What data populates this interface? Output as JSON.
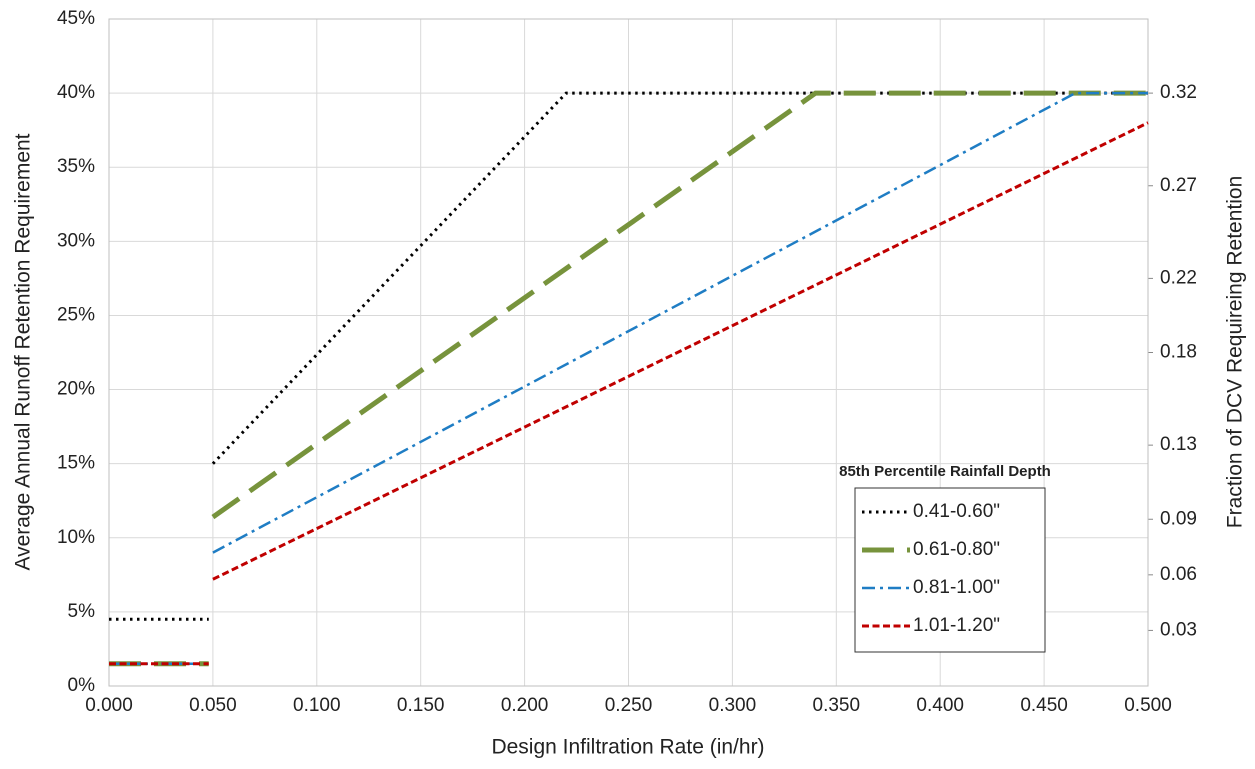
{
  "chart_data": {
    "type": "line",
    "xlabel": "Design Infiltration Rate (in/hr)",
    "ylabel": "Average Annual Runoff  Retention Requirement",
    "y2label": "Fraction of DCV Requireing Retention",
    "xlim": [
      0,
      0.5
    ],
    "xticks": [
      {
        "value": 0,
        "label": "0.000"
      },
      {
        "value": 0.05,
        "label": "0.050"
      },
      {
        "value": 0.1,
        "label": "0.100"
      },
      {
        "value": 0.15,
        "label": "0.150"
      },
      {
        "value": 0.2,
        "label": "0.200"
      },
      {
        "value": 0.25,
        "label": "0.250"
      },
      {
        "value": 0.3,
        "label": "0.300"
      },
      {
        "value": 0.35,
        "label": "0.350"
      },
      {
        "value": 0.4,
        "label": "0.400"
      },
      {
        "value": 0.45,
        "label": "0.450"
      },
      {
        "value": 0.5,
        "label": "0.500"
      }
    ],
    "ylim": [
      0,
      45
    ],
    "yticks": [
      {
        "value": 0,
        "label": "0%"
      },
      {
        "value": 5,
        "label": "5%"
      },
      {
        "value": 10,
        "label": "10%"
      },
      {
        "value": 15,
        "label": "15%"
      },
      {
        "value": 20,
        "label": "20%"
      },
      {
        "value": 25,
        "label": "25%"
      },
      {
        "value": 30,
        "label": "30%"
      },
      {
        "value": 35,
        "label": "35%"
      },
      {
        "value": 40,
        "label": "40%"
      },
      {
        "value": 45,
        "label": "45%"
      }
    ],
    "y2lim": [
      0,
      0.36
    ],
    "y2ticks": [
      0.03,
      0.06,
      0.09,
      0.13,
      0.18,
      0.22,
      0.27,
      0.32
    ],
    "grid": true,
    "legend": {
      "title": "85th Percentile Rainfall Depth",
      "position": "lower right"
    },
    "series": [
      {
        "name": "0.41-0.60\"",
        "color": "#000000",
        "style": "dotted",
        "x": [
          0,
          0.048,
          null,
          0.05,
          0.22,
          0.5
        ],
        "values": [
          4.5,
          4.5,
          null,
          15,
          40,
          40
        ]
      },
      {
        "name": "0.61-0.80\"",
        "color": "#77933c",
        "style": "long-dash",
        "x": [
          0,
          0.048,
          null,
          0.05,
          0.34,
          0.5
        ],
        "values": [
          1.5,
          1.5,
          null,
          11.4,
          40,
          40
        ]
      },
      {
        "name": "0.81-1.00\"",
        "color": "#1f7dc4",
        "style": "dash-dot",
        "x": [
          0,
          0.048,
          null,
          0.05,
          0.465,
          0.5
        ],
        "values": [
          1.5,
          1.5,
          null,
          9,
          40,
          40
        ]
      },
      {
        "name": "1.01-1.20\"",
        "color": "#c00000",
        "style": "dashed",
        "x": [
          0,
          0.048,
          null,
          0.05,
          0.5
        ],
        "values": [
          1.5,
          1.5,
          null,
          7.2,
          38
        ]
      }
    ]
  }
}
